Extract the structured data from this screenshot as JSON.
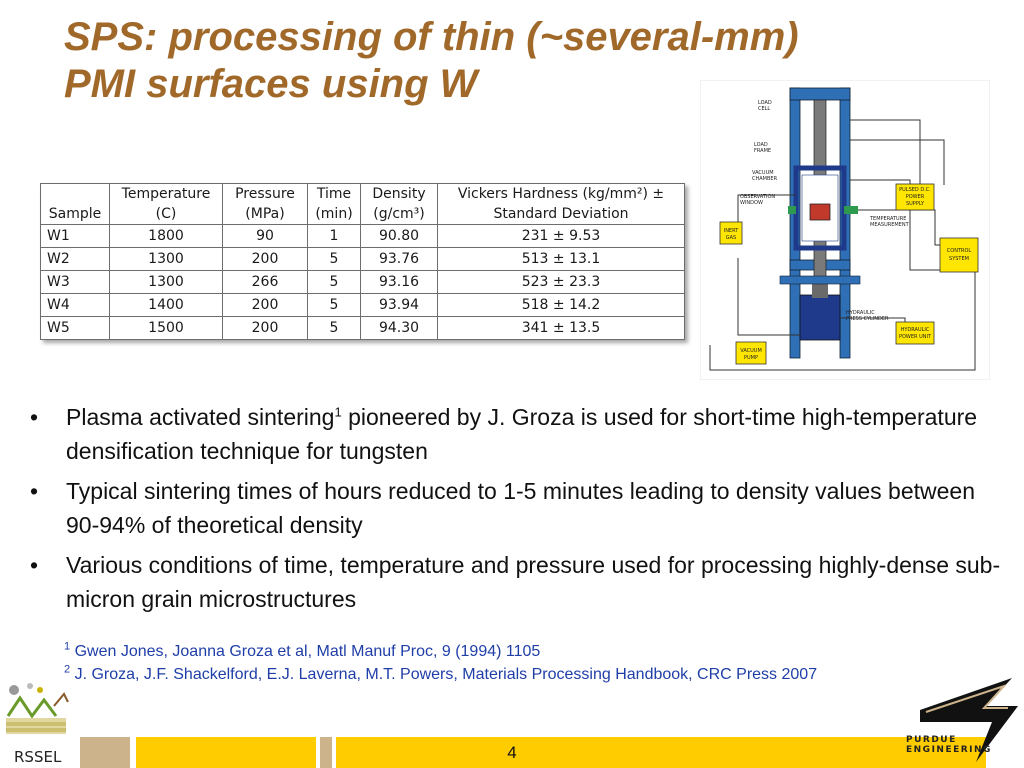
{
  "title": {
    "line1": "SPS: processing of thin (~several-mm)",
    "line2": "PMI surfaces using W"
  },
  "table": {
    "header_row1": [
      "",
      "Temperature",
      "Pressure",
      "Time",
      "Density",
      "Vickers Hardness (kg/mm²) ±"
    ],
    "header_row2": [
      "Sample",
      "(C)",
      "(MPa)",
      "(min)",
      "(g/cm³)",
      "Standard Deviation"
    ],
    "rows": [
      [
        "W1",
        "1800",
        "90",
        "1",
        "90.80",
        "231 ± 9.53"
      ],
      [
        "W2",
        "1300",
        "200",
        "5",
        "93.76",
        "513 ± 13.1"
      ],
      [
        "W3",
        "1300",
        "266",
        "5",
        "93.16",
        "523 ± 23.3"
      ],
      [
        "W4",
        "1400",
        "200",
        "5",
        "93.94",
        "518 ± 14.2"
      ],
      [
        "W5",
        "1500",
        "200",
        "5",
        "94.30",
        "341 ± 13.5"
      ]
    ]
  },
  "diagram": {
    "labels": {
      "load_cell": [
        "LOAD",
        "CELL"
      ],
      "load_frame": [
        "LOAD",
        "FRAME"
      ],
      "vacuum_chamber": [
        "VACUUM",
        "CHAMBER"
      ],
      "observation_window": [
        "OBSERVATION",
        "WINDOW"
      ],
      "temperature_measurement": [
        "TEMPERATURE",
        "MEASUREMENT"
      ],
      "hydraulic_press_cylinder": [
        "HYDRAULIC",
        "PRESS CYLINDER"
      ],
      "pulsed_dc": [
        "PULSED D.C.",
        "POWER",
        "SUPPLY"
      ],
      "control_system": [
        "CONTROL",
        "SYSTEM"
      ],
      "hydraulic_power_unit": [
        "HYDRAULIC",
        "POWER UNIT"
      ],
      "inert_gas": [
        "INERT",
        "GAS"
      ],
      "vacuum_pump": [
        "VACUUM",
        "PUMP"
      ]
    },
    "colors": {
      "frame_blue": "#2f6fb5",
      "box_yellow": "#ffe600",
      "dark_navy": "#1f3a8a",
      "green": "#2e9a4f"
    }
  },
  "bullets": [
    {
      "before": "Plasma activated sintering",
      "sup": "1",
      "after": " pioneered by J. Groza is used for short-time high-temperature densification technique for tungsten"
    },
    {
      "before": "Typical sintering times of hours reduced to 1-5 minutes leading to density values between 90-94% of theoretical density",
      "sup": "",
      "after": ""
    },
    {
      "before": "Various conditions of time, temperature and pressure used for processing highly-dense sub-micron grain microstructures",
      "sup": "",
      "after": ""
    }
  ],
  "bullet_symbol": "•",
  "references": [
    {
      "num": "1",
      "text": " Gwen Jones, Joanna Groza et al, Matl Manuf Proc, 9 (1994) 1105"
    },
    {
      "num": "2",
      "text": " J. Groza, J.F. Shackelford, E.J. Laverna, M.T. Powers, Materials Processing Handbook, CRC Press 2007"
    }
  ],
  "footer": {
    "page_number": "4",
    "left_logo_text": "RSSEL",
    "right_logo_text": [
      "PURDUE",
      "ENGINEERING"
    ],
    "colors": {
      "gold": "#ffcc00",
      "tan": "#cdb38b"
    }
  }
}
